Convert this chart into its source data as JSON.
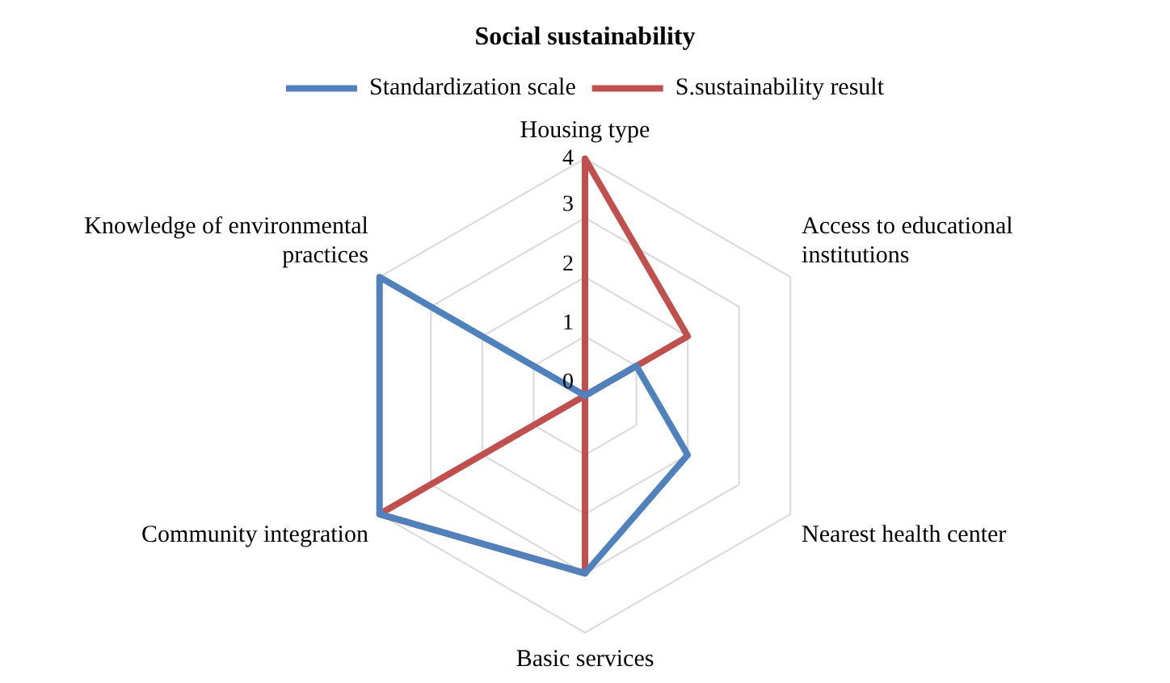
{
  "chart_data": {
    "type": "radar",
    "title": "Social sustainability",
    "categories": [
      "Housing type",
      "Access to educational institutions",
      "Nearest health center",
      "Basic services",
      "Community integration",
      "Knowledge of environmental practices"
    ],
    "series": [
      {
        "name": "Standardization scale",
        "color": "#4f81bd",
        "values": [
          0,
          1,
          2,
          3,
          4,
          4
        ]
      },
      {
        "name": "S.sustainability result",
        "color": "#c0504d",
        "values": [
          4,
          2,
          0,
          3,
          4,
          0
        ]
      }
    ],
    "ylim": [
      0,
      4
    ],
    "yticks": [
      0,
      1,
      2,
      3,
      4
    ],
    "grid": true,
    "legend": "top",
    "marker": "none",
    "line_style": "solid"
  }
}
